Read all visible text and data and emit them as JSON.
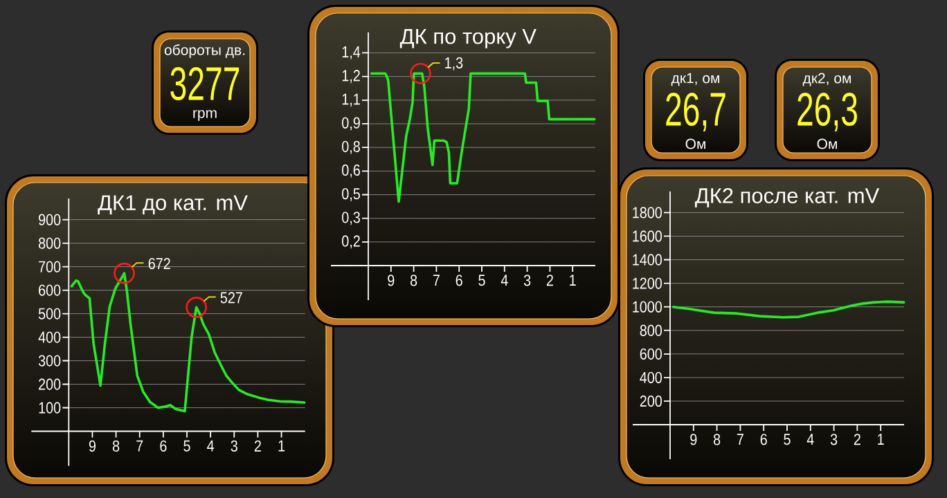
{
  "chart_data": [
    {
      "type": "other",
      "title": "обороты дв.",
      "annotations": [
        "3277",
        "rpm"
      ]
    },
    {
      "type": "line",
      "title": "ДК по торку V",
      "color": "#22ee22",
      "xlim": [
        10,
        0
      ],
      "ylim": [
        0,
        1.53
      ],
      "xticks": [
        9,
        8,
        7,
        6,
        5,
        4,
        3,
        2,
        1
      ],
      "yticks": [
        {
          "value": 0.155,
          "label": "0,2"
        },
        {
          "value": 0.31,
          "label": "0,3"
        },
        {
          "value": 0.465,
          "label": "0,5"
        },
        {
          "value": 0.62,
          "label": "0,6"
        },
        {
          "value": 0.775,
          "label": "0,8"
        },
        {
          "value": 0.93,
          "label": "0,9"
        },
        {
          "value": 1.085,
          "label": "1,1"
        },
        {
          "value": 1.24,
          "label": "1,2"
        },
        {
          "value": 1.395,
          "label": "1,4"
        }
      ],
      "grid": "y",
      "x": [
        9.86,
        9.25,
        9.18,
        9.12,
        8.66,
        8.33,
        8.17,
        8.05,
        7.99,
        7.63,
        7.53,
        7.38,
        7.17,
        7.09,
        6.7,
        6.55,
        6.45,
        6.39,
        6.09,
        5.87,
        5.57,
        5.49,
        3.1,
        3.05,
        2.61,
        2.54,
        2.1,
        2.03,
        0.04
      ],
      "values": [
        1.26,
        1.26,
        1.24,
        1.21,
        0.42,
        0.85,
        0.96,
        1.07,
        1.26,
        1.26,
        1.17,
        0.9,
        0.66,
        0.82,
        0.82,
        0.81,
        0.74,
        0.54,
        0.54,
        0.76,
        1.03,
        1.26,
        1.26,
        1.2,
        1.2,
        1.08,
        1.08,
        0.96,
        0.96
      ],
      "annotations": [
        {
          "text": "1,3",
          "x": 7.7,
          "y": 1.26
        }
      ]
    },
    {
      "type": "other",
      "title": "дк1, ом",
      "annotations": [
        "26,7",
        "Ом"
      ]
    },
    {
      "type": "other",
      "title": "дк2, ом",
      "annotations": [
        "26,3",
        "Ом"
      ]
    },
    {
      "type": "line",
      "title": "ДК1 до кат. mV",
      "color": "#22ee22",
      "xlim": [
        10,
        0
      ],
      "ylim": [
        0,
        990
      ],
      "xticks": [
        9,
        8,
        7,
        6,
        5,
        4,
        3,
        2,
        1
      ],
      "yticks": [
        100,
        200,
        300,
        400,
        500,
        600,
        700,
        800,
        900
      ],
      "grid": "y",
      "x": [
        9.88,
        9.69,
        9.61,
        9.39,
        9.28,
        9.12,
        8.95,
        8.66,
        8.47,
        8.27,
        8.03,
        7.83,
        7.65,
        7.54,
        7.39,
        7.24,
        7.1,
        6.85,
        6.56,
        6.22,
        5.97,
        5.7,
        5.48,
        5.09,
        4.8,
        4.6,
        4.46,
        4.31,
        4.07,
        3.82,
        3.53,
        3.33,
        3.09,
        2.8,
        2.45,
        1.96,
        1.57,
        1.08,
        0.6,
        0.03
      ],
      "values": [
        617,
        641,
        638,
        592,
        578,
        566,
        373,
        194,
        373,
        529,
        607,
        641,
        672,
        597,
        460,
        343,
        236,
        168,
        124,
        100,
        104,
        111,
        95,
        85,
        402,
        527,
        500,
        456,
        412,
        334,
        275,
        236,
        207,
        176,
        158,
        143,
        134,
        127,
        126,
        122
      ],
      "annotations": [
        {
          "text": "672",
          "x": 7.65,
          "y": 672
        },
        {
          "text": "527",
          "x": 4.6,
          "y": 527
        }
      ]
    },
    {
      "type": "line",
      "title": "ДК2 после кат. mV",
      "color": "#22ee22",
      "xlim": [
        10,
        0
      ],
      "ylim": [
        0,
        1980
      ],
      "xticks": [
        9,
        8,
        7,
        6,
        5,
        4,
        3,
        2,
        1
      ],
      "yticks": [
        200,
        400,
        600,
        800,
        1000,
        1200,
        1400,
        1600,
        1800
      ],
      "grid": "y",
      "x": [
        9.86,
        9.1,
        8.12,
        7.14,
        6.16,
        5.18,
        4.5,
        3.71,
        3.03,
        2.25,
        1.76,
        1.27,
        0.68,
        0.01
      ],
      "values": [
        999,
        980,
        950,
        944,
        921,
        911,
        915,
        950,
        970,
        1009,
        1028,
        1038,
        1044,
        1038
      ]
    }
  ]
}
